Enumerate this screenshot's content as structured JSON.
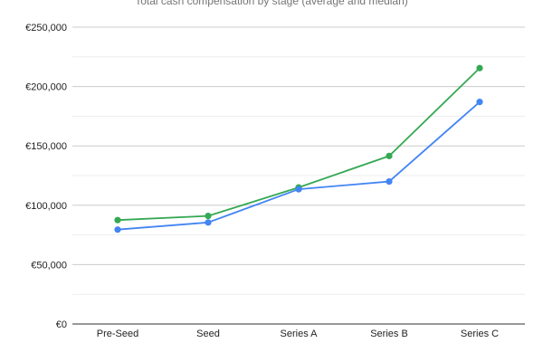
{
  "chart_data": {
    "type": "line",
    "title": "Total cash compensation by stage (average and median)",
    "xlabel": "",
    "ylabel": "",
    "categories": [
      "Pre-Seed",
      "Seed",
      "Series A",
      "Series B",
      "Series C"
    ],
    "ylim": [
      0,
      250000
    ],
    "yticks": [
      0,
      50000,
      100000,
      150000,
      200000,
      250000
    ],
    "ytick_labels": [
      "€0",
      "€50,000",
      "€100,000",
      "€150,000",
      "€200,000",
      "€250,000"
    ],
    "grid": true,
    "series": [
      {
        "color": "#34a853",
        "values": [
          87500,
          91000,
          115000,
          141500,
          215500
        ]
      },
      {
        "color": "#4285f4",
        "values": [
          79500,
          85500,
          113500,
          120000,
          187000
        ]
      }
    ]
  }
}
